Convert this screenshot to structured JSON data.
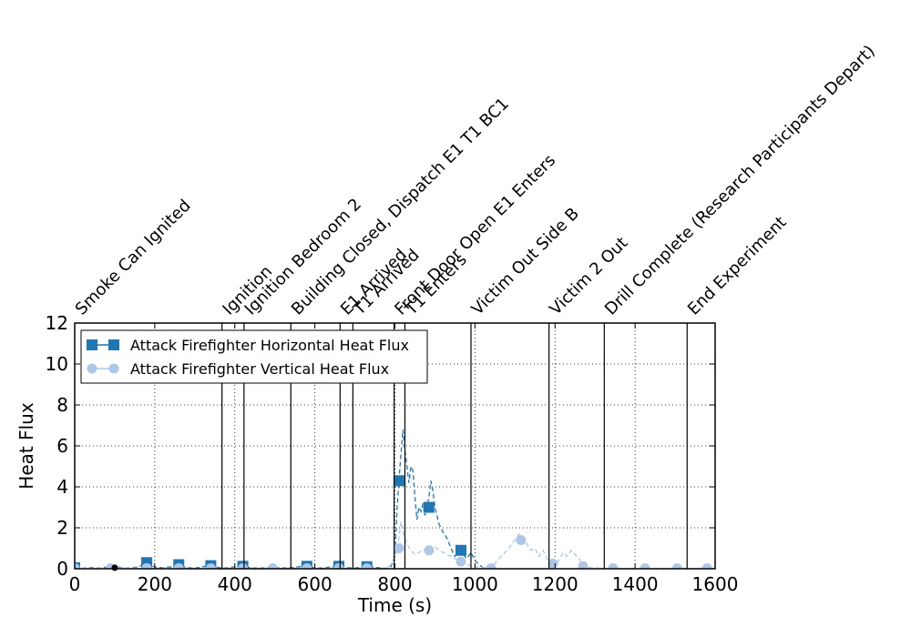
{
  "chart_data": {
    "type": "line",
    "title": "",
    "xlabel": "Time (s)",
    "ylabel": "Heat Flux",
    "xlim": [
      0,
      1600
    ],
    "ylim": [
      0,
      12
    ],
    "xticks": [
      0,
      200,
      400,
      600,
      800,
      1000,
      1200,
      1400,
      1600
    ],
    "yticks": [
      0,
      2,
      4,
      6,
      8,
      10,
      12
    ],
    "grid": true,
    "legend_position": "upper-left",
    "series": [
      {
        "name": "Attack Firefighter Horizontal Heat Flux",
        "color": "#1f77b4",
        "marker": "square",
        "x": [
          0,
          20,
          40,
          60,
          80,
          100,
          120,
          140,
          160,
          180,
          200,
          220,
          240,
          260,
          280,
          300,
          320,
          340,
          360,
          380,
          400,
          420,
          440,
          460,
          480,
          500,
          520,
          540,
          560,
          580,
          600,
          620,
          640,
          660,
          680,
          700,
          720,
          740,
          760,
          780,
          790,
          800,
          805,
          810,
          815,
          820,
          825,
          830,
          835,
          840,
          845,
          850,
          855,
          860,
          865,
          870,
          875,
          880,
          885,
          890,
          895,
          900,
          905,
          910,
          920,
          930,
          940,
          950,
          960,
          970,
          980,
          990,
          1000,
          1010,
          1020
        ],
        "y": [
          0.05,
          0.02,
          0.06,
          0.03,
          0.08,
          0.12,
          0.05,
          0.04,
          0.1,
          0.3,
          0.08,
          0.05,
          0.1,
          0.2,
          0.05,
          0.03,
          0.1,
          0.15,
          0.05,
          0.04,
          0.1,
          0.12,
          0.05,
          0.03,
          0.05,
          0.06,
          0.04,
          0.05,
          0.1,
          0.12,
          0.05,
          0.03,
          0.1,
          0.12,
          0.05,
          0.04,
          0.08,
          0.1,
          0.05,
          0.02,
          0.1,
          0.6,
          2.8,
          4.3,
          5.6,
          6.8,
          5.8,
          5.0,
          4.2,
          5.0,
          4.8,
          3.5,
          2.4,
          3.0,
          2.8,
          3.2,
          2.6,
          3.0,
          3.5,
          4.3,
          3.8,
          3.0,
          2.6,
          2.2,
          1.8,
          1.5,
          1.0,
          0.6,
          0.9,
          0.7,
          0.5,
          0.8,
          0.4,
          0.2,
          0.05
        ],
        "marker_x": [
          0,
          180,
          260,
          340,
          420,
          580,
          660,
          730,
          810,
          885,
          965
        ],
        "marker_y": [
          0.05,
          0.3,
          0.2,
          0.15,
          0.12,
          0.12,
          0.12,
          0.1,
          4.3,
          3.0,
          0.9
        ]
      },
      {
        "name": "Attack Firefighter Vertical Heat Flux",
        "color": "#aec7e8",
        "marker": "circle",
        "x": [
          0,
          40,
          80,
          120,
          160,
          200,
          240,
          280,
          320,
          360,
          400,
          440,
          480,
          520,
          560,
          600,
          640,
          680,
          720,
          760,
          780,
          790,
          800,
          805,
          810,
          815,
          820,
          830,
          840,
          850,
          860,
          870,
          880,
          890,
          900,
          910,
          920,
          930,
          940,
          950,
          960,
          980,
          1000,
          1020,
          1040,
          1060,
          1080,
          1100,
          1110,
          1120,
          1130,
          1140,
          1150,
          1160,
          1170,
          1180,
          1190,
          1200,
          1210,
          1220,
          1230,
          1240,
          1250,
          1260,
          1270,
          1290,
          1320,
          1360,
          1400,
          1440,
          1480,
          1510,
          1540,
          1580,
          1600
        ],
        "y": [
          0.02,
          0.03,
          0.02,
          0.05,
          0.03,
          0.02,
          0.04,
          0.03,
          0.02,
          0.03,
          0.02,
          0.03,
          0.02,
          0.02,
          0.03,
          0.02,
          0.03,
          0.02,
          0.03,
          0.02,
          0.05,
          0.2,
          0.6,
          1.0,
          1.5,
          2.3,
          1.8,
          1.2,
          0.9,
          0.7,
          0.8,
          0.9,
          1.0,
          0.9,
          1.1,
          0.9,
          0.8,
          0.7,
          0.6,
          0.5,
          0.35,
          0.2,
          0.1,
          0.05,
          0.02,
          0.5,
          0.9,
          1.4,
          1.7,
          1.5,
          1.2,
          0.9,
          1.0,
          0.6,
          0.9,
          0.5,
          0.3,
          0.25,
          0.4,
          0.8,
          0.6,
          0.9,
          0.7,
          0.5,
          0.12,
          0.05,
          0.02,
          0.02,
          0.02,
          0.02,
          0.02,
          0.02,
          0.02,
          0.02,
          0.02
        ],
        "marker_x": [
          0,
          90,
          180,
          260,
          340,
          420,
          495,
          580,
          660,
          730,
          810,
          885,
          965,
          1040,
          1115,
          1195,
          1270,
          1345,
          1425,
          1505,
          1580
        ],
        "marker_y": [
          0.02,
          0.03,
          0.03,
          0.03,
          0.02,
          0.02,
          0.02,
          0.02,
          0.03,
          0.02,
          1.0,
          0.9,
          0.35,
          0.02,
          1.4,
          0.25,
          0.12,
          0.02,
          0.02,
          0.02,
          0.02
        ]
      }
    ],
    "events": [
      {
        "t": 0,
        "label": "Smoke Can Ignited",
        "line": false
      },
      {
        "t": 368,
        "label": "Ignition",
        "line": true
      },
      {
        "t": 423,
        "label": "Ignition Bedroom 2",
        "line": true
      },
      {
        "t": 540,
        "label": "Building Closed, Dispatch E1 T1 BC1",
        "line": true
      },
      {
        "t": 663,
        "label": "E1 Arrived",
        "line": true
      },
      {
        "t": 695,
        "label": "T1 Arrived",
        "line": true
      },
      {
        "t": 798,
        "label": "Front Door Open E1 Enters",
        "line": true
      },
      {
        "t": 825,
        "label": "T1 Enters",
        "line": true
      },
      {
        "t": 990,
        "label": "Victim Out Side B",
        "line": true
      },
      {
        "t": 1185,
        "label": "Victim 2 Out",
        "line": true
      },
      {
        "t": 1323,
        "label": "Drill Complete (Research  Participants Depart)",
        "line": true
      },
      {
        "t": 1530,
        "label": "End Experiment",
        "line": true
      }
    ]
  }
}
